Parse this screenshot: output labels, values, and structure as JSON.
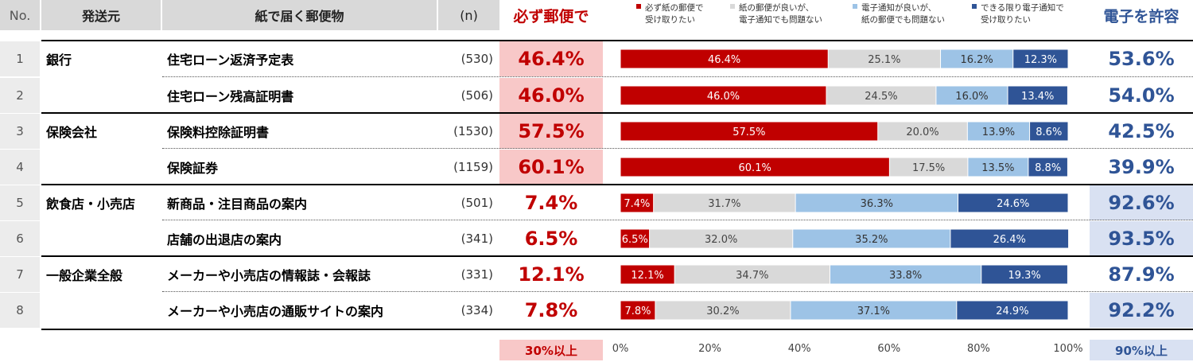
{
  "header": {
    "no": "No.",
    "sender": "発送元",
    "item": "紙で届く郵便物",
    "n": "(n)",
    "must_mail": "必ず郵便で",
    "allow_electronic": "電子を許容"
  },
  "legend": [
    {
      "line1": "必ず紙の郵便で",
      "line2": "受け取りたい",
      "color": "#c00000"
    },
    {
      "line1": "紙の郵便が良いが、",
      "line2": "電子通知でも問題ない",
      "color": "#d9d9d9"
    },
    {
      "line1": "電子通知が良いが、",
      "line2": "紙の郵便でも問題ない",
      "color": "#9dc3e6"
    },
    {
      "line1": "できる限り電子通知で",
      "line2": "受け取りたい",
      "color": "#2f5496"
    }
  ],
  "rows": [
    {
      "no": "1",
      "sender": "銀行",
      "item": "住宅ローン返済予定表",
      "n": "(530)",
      "must": "46.4%",
      "allow": "53.6%",
      "must_hl": true,
      "allow_hl": false
    },
    {
      "no": "2",
      "sender": "",
      "item": "住宅ローン残高証明書",
      "n": "(506)",
      "must": "46.0%",
      "allow": "54.0%",
      "must_hl": true,
      "allow_hl": false
    },
    {
      "no": "3",
      "sender": "保険会社",
      "item": "保険料控除証明書",
      "n": "(1530)",
      "must": "57.5%",
      "allow": "42.5%",
      "must_hl": true,
      "allow_hl": false
    },
    {
      "no": "4",
      "sender": "",
      "item": "保険証券",
      "n": "(1159)",
      "must": "60.1%",
      "allow": "39.9%",
      "must_hl": true,
      "allow_hl": false
    },
    {
      "no": "5",
      "sender": "飲食店・小売店",
      "item": "新商品・注目商品の案内",
      "n": "(501)",
      "must": "7.4%",
      "allow": "92.6%",
      "must_hl": false,
      "allow_hl": true
    },
    {
      "no": "6",
      "sender": "",
      "item": "店舗の出退店の案内",
      "n": "(341)",
      "must": "6.5%",
      "allow": "93.5%",
      "must_hl": false,
      "allow_hl": true
    },
    {
      "no": "7",
      "sender": "一般企業全般",
      "item": "メーカーや小売店の情報誌・会報誌",
      "n": "(331)",
      "must": "12.1%",
      "allow": "87.9%",
      "must_hl": false,
      "allow_hl": false
    },
    {
      "no": "8",
      "sender": "",
      "item": "メーカーや小売店の通販サイトの案内",
      "n": "(334)",
      "must": "7.8%",
      "allow": "92.2%",
      "must_hl": false,
      "allow_hl": true
    }
  ],
  "chart_data": {
    "type": "bar",
    "orientation": "horizontal",
    "stacked": true,
    "categories": [
      "住宅ローン返済予定表",
      "住宅ローン残高証明書",
      "保険料控除証明書",
      "保険証券",
      "新商品・注目商品の案内",
      "店舗の出退店の案内",
      "メーカーや小売店の情報誌・会報誌",
      "メーカーや小売店の通販サイトの案内"
    ],
    "series": [
      {
        "name": "必ず紙の郵便で受け取りたい",
        "color": "#c00000",
        "values": [
          46.4,
          46.0,
          57.5,
          60.1,
          7.4,
          6.5,
          12.1,
          7.8
        ]
      },
      {
        "name": "紙の郵便が良いが、電子通知でも問題ない",
        "color": "#d9d9d9",
        "values": [
          25.1,
          24.5,
          20.0,
          17.5,
          31.7,
          32.0,
          34.7,
          30.2
        ]
      },
      {
        "name": "電子通知が良いが、紙の郵便でも問題ない",
        "color": "#9dc3e6",
        "values": [
          16.2,
          16.0,
          13.9,
          13.5,
          36.3,
          35.2,
          33.8,
          37.1
        ]
      },
      {
        "name": "できる限り電子通知で受け取りたい",
        "color": "#2f5496",
        "values": [
          12.3,
          13.4,
          8.6,
          8.8,
          24.6,
          26.4,
          19.3,
          24.9
        ]
      }
    ],
    "label_colors": [
      "#ffffff",
      "#444444",
      "#333333",
      "#ffffff"
    ],
    "xlim": [
      0,
      100
    ],
    "xticks": [
      0,
      20,
      40,
      60,
      80,
      100
    ],
    "tick_labels": [
      "0%",
      "20%",
      "40%",
      "60%",
      "80%",
      "100%"
    ],
    "grid": false,
    "legend_position": "top"
  },
  "footer": {
    "must_threshold": "30%以上",
    "allow_threshold": "90%以上"
  }
}
